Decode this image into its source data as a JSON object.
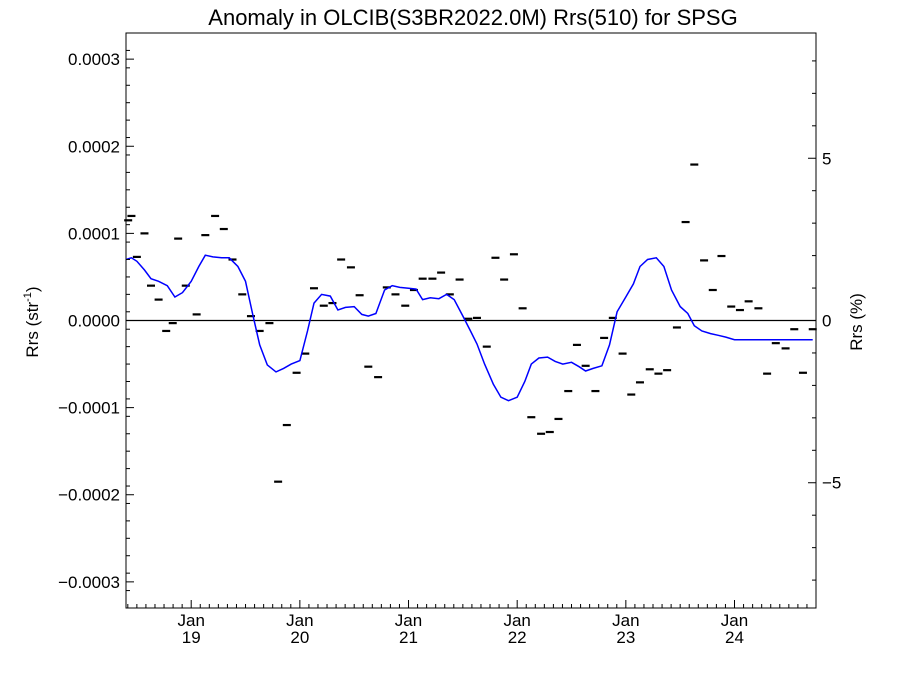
{
  "chart_data": {
    "type": "scatter",
    "title": "Anomaly in OLCIB(S3BR2022.0M) Rrs(510) for SPSG",
    "ylabel_main": "Rrs (str",
    "ylabel_sup": "-1",
    "ylabel_close": ")",
    "ylabel_right": "Rrs (%)",
    "x_range": [
      2018.4,
      2024.75
    ],
    "ylim": [
      -0.00033,
      0.00033
    ],
    "ylim_right": [
      -8.86,
      8.86
    ],
    "y_ticks": [
      "0.0003",
      "0.0002",
      "0.0001",
      "0.0000",
      "−0.0001",
      "−0.0002",
      "−0.0003"
    ],
    "y_tick_values": [
      0.0003,
      0.0002,
      0.0001,
      0,
      -0.0001,
      -0.0002,
      -0.0003
    ],
    "y_right_ticks": [
      "5",
      "0",
      "−5"
    ],
    "y_right_tick_values": [
      5,
      0,
      -5
    ],
    "x_ticks": [
      {
        "value": 2019.0,
        "month": "Jan",
        "year": "19"
      },
      {
        "value": 2020.0,
        "month": "Jan",
        "year": "20"
      },
      {
        "value": 2021.0,
        "month": "Jan",
        "year": "21"
      },
      {
        "value": 2022.0,
        "month": "Jan",
        "year": "22"
      },
      {
        "value": 2023.0,
        "month": "Jan",
        "year": "23"
      },
      {
        "value": 2024.0,
        "month": "Jan",
        "year": "24"
      }
    ],
    "zero_line": true,
    "series": [
      {
        "kind": "points",
        "color": "#000000",
        "x": [
          2018.42,
          2018.45,
          2018.5,
          2018.57,
          2018.63,
          2018.7,
          2018.77,
          2018.83,
          2018.88,
          2018.95,
          2019.05,
          2019.13,
          2019.22,
          2019.3,
          2019.38,
          2019.47,
          2019.55,
          2019.63,
          2019.72,
          2019.8,
          2019.88,
          2019.97,
          2020.05,
          2020.13,
          2020.22,
          2020.3,
          2020.38,
          2020.47,
          2020.55,
          2020.63,
          2020.72,
          2020.8,
          2020.88,
          2020.97,
          2021.05,
          2021.13,
          2021.22,
          2021.3,
          2021.38,
          2021.47,
          2021.55,
          2021.63,
          2021.72,
          2021.8,
          2021.88,
          2021.97,
          2022.05,
          2022.13,
          2022.22,
          2022.3,
          2022.38,
          2022.47,
          2022.55,
          2022.63,
          2022.72,
          2022.8,
          2022.88,
          2022.97,
          2023.05,
          2023.13,
          2023.22,
          2023.3,
          2023.38,
          2023.47,
          2023.55,
          2023.63,
          2023.72,
          2023.8,
          2023.88,
          2023.97,
          2024.05,
          2024.13,
          2024.22,
          2024.3,
          2024.38,
          2024.47,
          2024.55,
          2024.63,
          2024.72
        ],
        "y": [
          0.000115,
          0.00012,
          7.3e-05,
          0.0001,
          4e-05,
          2.4e-05,
          -1.2e-05,
          -3e-06,
          9.4e-05,
          4e-05,
          7e-06,
          9.8e-05,
          0.00012,
          0.000105,
          7e-05,
          3e-05,
          5e-06,
          -1.2e-05,
          -3e-06,
          -0.000185,
          -0.00012,
          -6e-05,
          -3.8e-05,
          3.7e-05,
          1.7e-05,
          2e-05,
          7e-05,
          6.1e-05,
          2.9e-05,
          -5.3e-05,
          -6.5e-05,
          3.8e-05,
          3e-05,
          1.7e-05,
          3.5e-05,
          4.8e-05,
          4.8e-05,
          5.5e-05,
          3e-05,
          4.7e-05,
          2e-06,
          3e-06,
          -3e-05,
          7.2e-05,
          4.7e-05,
          7.6e-05,
          1.4e-05,
          -0.000111,
          -0.00013,
          -0.000128,
          -0.000113,
          -8.1e-05,
          -2.8e-05,
          -5.2e-05,
          -8.1e-05,
          -2e-05,
          3e-06,
          -3.8e-05,
          -8.5e-05,
          -7.1e-05,
          -5.6e-05,
          -6.1e-05,
          -5.7e-05,
          -8e-06,
          0.000113,
          0.000179,
          6.9e-05,
          3.5e-05,
          7.4e-05,
          1.6e-05,
          1.2e-05,
          2.2e-05,
          1.4e-05,
          -6.1e-05,
          -2.6e-05,
          -3.2e-05,
          -1e-05,
          -6e-05,
          -1e-05
        ]
      },
      {
        "kind": "line",
        "color": "#0000ff",
        "x": [
          2018.4,
          2018.45,
          2018.5,
          2018.57,
          2018.63,
          2018.7,
          2018.78,
          2018.85,
          2018.92,
          2019.0,
          2019.07,
          2019.13,
          2019.2,
          2019.28,
          2019.35,
          2019.43,
          2019.5,
          2019.57,
          2019.63,
          2019.7,
          2019.78,
          2019.85,
          2019.92,
          2020.0,
          2020.07,
          2020.13,
          2020.2,
          2020.28,
          2020.35,
          2020.42,
          2020.5,
          2020.57,
          2020.63,
          2020.7,
          2020.78,
          2020.85,
          2020.92,
          2021.0,
          2021.07,
          2021.13,
          2021.2,
          2021.28,
          2021.35,
          2021.42,
          2021.5,
          2021.57,
          2021.63,
          2021.7,
          2021.78,
          2021.85,
          2021.92,
          2022.0,
          2022.07,
          2022.13,
          2022.2,
          2022.28,
          2022.35,
          2022.42,
          2022.5,
          2022.57,
          2022.63,
          2022.7,
          2022.78,
          2022.85,
          2022.92,
          2023.0,
          2023.07,
          2023.13,
          2023.2,
          2023.28,
          2023.35,
          2023.42,
          2023.5,
          2023.57,
          2023.63,
          2023.7,
          2023.78,
          2023.85,
          2023.92,
          2024.0,
          2024.07,
          2024.13,
          2024.2,
          2024.28,
          2024.35,
          2024.42,
          2024.5,
          2024.57,
          2024.63,
          2024.72
        ],
        "y": [
          7e-05,
          7.2e-05,
          6.8e-05,
          5.8e-05,
          4.8e-05,
          4.5e-05,
          4e-05,
          2.7e-05,
          3.2e-05,
          4.5e-05,
          6.2e-05,
          7.5e-05,
          7.3e-05,
          7.2e-05,
          7.2e-05,
          6.2e-05,
          4.5e-05,
          5e-06,
          -2.8e-05,
          -5.1e-05,
          -5.9e-05,
          -5.5e-05,
          -5e-05,
          -4.6e-05,
          -1.2e-05,
          2e-05,
          3e-05,
          2.8e-05,
          1.2e-05,
          1.5e-05,
          1.6e-05,
          7e-06,
          5e-06,
          8e-06,
          3.5e-05,
          4e-05,
          3.8e-05,
          3.7e-05,
          3.6e-05,
          2.4e-05,
          2.6e-05,
          2.5e-05,
          3e-05,
          2.4e-05,
          5e-06,
          -1.2e-05,
          -2.7e-05,
          -5e-05,
          -7.3e-05,
          -8.8e-05,
          -9.2e-05,
          -8.8e-05,
          -7e-05,
          -5e-05,
          -4.3e-05,
          -4.2e-05,
          -4.7e-05,
          -5e-05,
          -4.8e-05,
          -5.3e-05,
          -5.8e-05,
          -5.5e-05,
          -5.2e-05,
          -2.8e-05,
          1e-05,
          2.7e-05,
          4.2e-05,
          6.2e-05,
          7e-05,
          7.2e-05,
          6.2e-05,
          3.5e-05,
          1.6e-05,
          8e-06,
          -6e-06,
          -1.2e-05,
          -1.5e-05,
          -1.7e-05,
          -1.9e-05,
          -2.2e-05,
          -2.2e-05,
          -2.2e-05,
          -2.2e-05,
          -2.2e-05,
          -2.2e-05,
          -2.2e-05,
          -2.2e-05,
          -2.2e-05,
          -2.2e-05,
          -2.2e-05
        ]
      }
    ]
  }
}
